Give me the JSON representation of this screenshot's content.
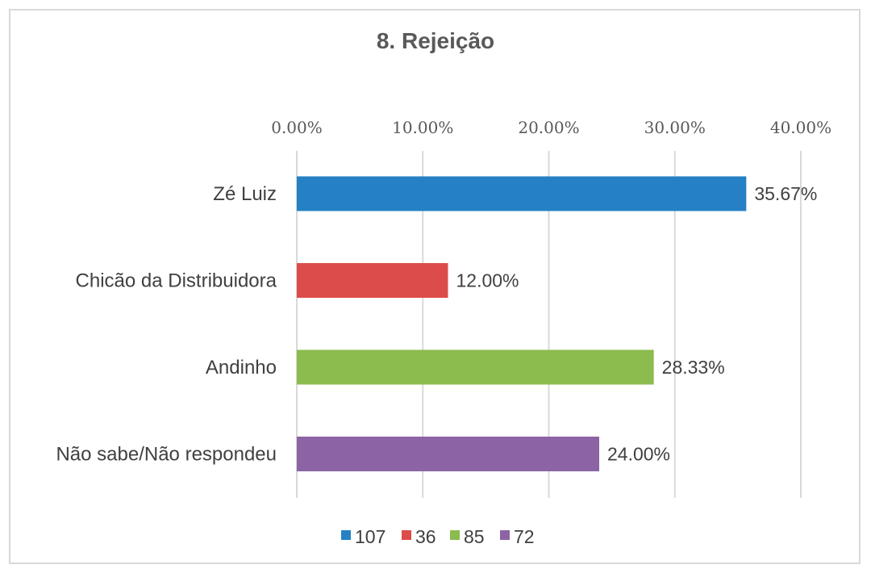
{
  "chart_data": {
    "type": "bar",
    "orientation": "horizontal",
    "title": "8. Rejeição",
    "categories": [
      "Zé Luiz",
      "Chicão da Distribuidora",
      "Andinho",
      "Não sabe/Não respondeu"
    ],
    "values": [
      35.67,
      12.0,
      28.33,
      24.0
    ],
    "data_labels": [
      "35.67%",
      "12.00%",
      "28.33%",
      "24.00%"
    ],
    "colors": [
      "#2581c4",
      "#dc4c4a",
      "#8cbb4e",
      "#8c64a6"
    ],
    "xlim": [
      0,
      40
    ],
    "x_ticks": [
      0,
      10,
      20,
      30,
      40
    ],
    "x_tick_labels": [
      "0.00%",
      "10.00%",
      "20.00%",
      "30.00%",
      "40.00%"
    ],
    "x_axis_position": "top",
    "grid": true,
    "legend": {
      "placement": "bottom",
      "entries": [
        "107",
        "36",
        "85",
        "72"
      ]
    }
  }
}
